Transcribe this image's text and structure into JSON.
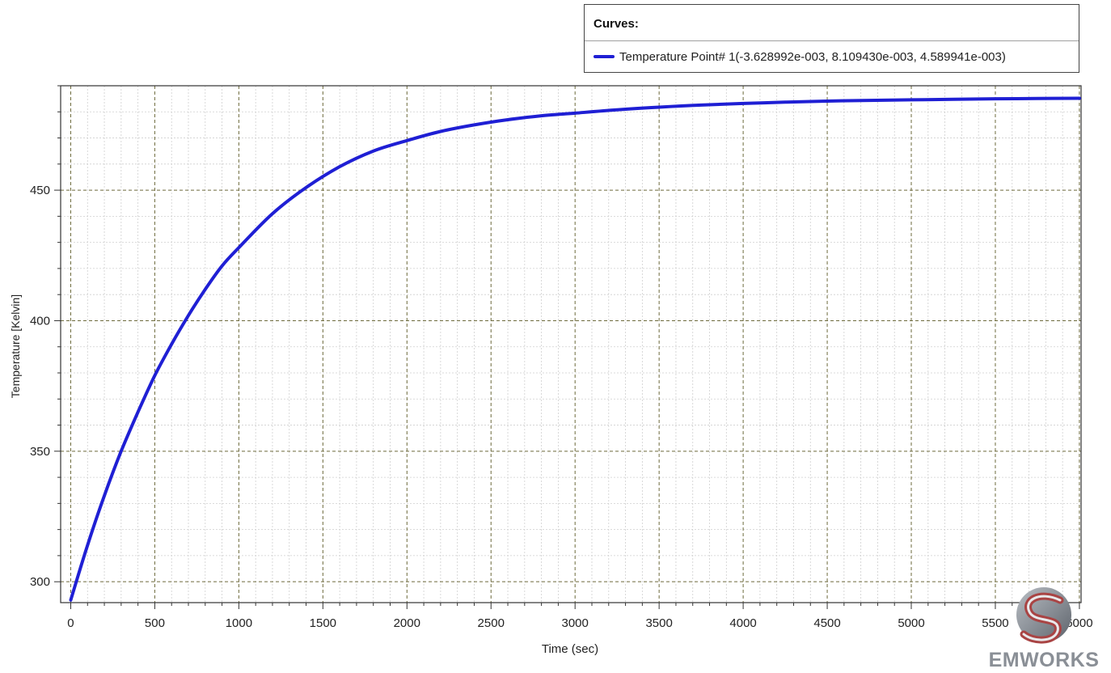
{
  "legend": {
    "title": "Curves:",
    "items": [
      {
        "label": "Temperature Point# 1(-3.628992e-003, 8.109430e-003, 4.589941e-003)",
        "color": "#1f1fd4"
      }
    ]
  },
  "logo": {
    "text": "EMWORKS"
  },
  "chart_data": {
    "type": "line",
    "title": "",
    "xlabel": "Time (sec)",
    "ylabel": "Temperature [Kelvin]",
    "xlim": [
      -60,
      6010
    ],
    "ylim": [
      292,
      490
    ],
    "xticks": [
      0,
      500,
      1000,
      1500,
      2000,
      2500,
      3000,
      3500,
      4000,
      4500,
      5000,
      5500,
      6000
    ],
    "yticks": [
      300,
      350,
      400,
      450
    ],
    "grid": true,
    "legend_position": "top-right",
    "series": [
      {
        "name": "Temperature Point# 1(-3.628992e-003, 8.109430e-003, 4.589941e-003)",
        "color": "#1f1fd4",
        "x": [
          0,
          100,
          200,
          300,
          400,
          500,
          600,
          700,
          800,
          900,
          1000,
          1200,
          1400,
          1600,
          1800,
          2000,
          2200,
          2400,
          2600,
          2800,
          3000,
          3250,
          3500,
          3750,
          4000,
          4250,
          4500,
          4750,
          5000,
          5250,
          5500,
          5750,
          6000
        ],
        "y": [
          293,
          314,
          333,
          350,
          365,
          379,
          391,
          402,
          412,
          421,
          428,
          441,
          451,
          459,
          465,
          469,
          472.5,
          475,
          477,
          478.5,
          479.5,
          480.8,
          481.8,
          482.6,
          483.2,
          483.7,
          484.1,
          484.4,
          484.6,
          484.8,
          485,
          485.1,
          485.2
        ]
      }
    ]
  }
}
